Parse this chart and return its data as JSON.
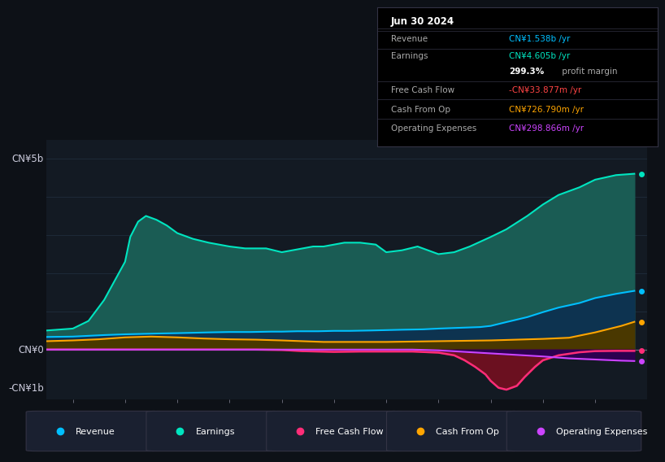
{
  "background_color": "#0d1117",
  "plot_bg_color": "#131a23",
  "title": "Jun 30 2024",
  "ylabel_top": "CN¥5b",
  "ylabel_bottom": "-CN¥1b",
  "ylabel_zero": "CN¥0",
  "ylim": [
    -1.3,
    5.5
  ],
  "xlim": [
    2013.5,
    2025.0
  ],
  "xticks": [
    2014,
    2015,
    2016,
    2017,
    2018,
    2019,
    2020,
    2021,
    2022,
    2023,
    2024
  ],
  "colors": {
    "revenue": "#00bfff",
    "earnings": "#00e5c0",
    "earnings_fill": "#1a5c54",
    "free_cash_flow": "#ff2d78",
    "free_cash_flow_fill": "#6b1020",
    "cash_from_op": "#ffa500",
    "operating_expenses": "#cc44ff",
    "revenue_fill": "#0d3350",
    "zero_line": "#444455"
  },
  "info_box": {
    "title": "Jun 30 2024",
    "rows": [
      {
        "label": "Revenue",
        "value": "CN¥1.538b /yr",
        "value_color": "#00bfff"
      },
      {
        "label": "Earnings",
        "value": "CN¥4.605b /yr",
        "value_color": "#00e5c0"
      },
      {
        "label": "",
        "value2_bold": "299.3%",
        "value2_rest": " profit margin"
      },
      {
        "label": "Free Cash Flow",
        "value": "-CN¥33.877m /yr",
        "value_color": "#ff4444"
      },
      {
        "label": "Cash From Op",
        "value": "CN¥726.790m /yr",
        "value_color": "#ffa500"
      },
      {
        "label": "Operating Expenses",
        "value": "CN¥298.866m /yr",
        "value_color": "#cc44ff"
      }
    ]
  },
  "revenue_x": [
    2013.5,
    2014.0,
    2014.3,
    2014.6,
    2015.0,
    2015.3,
    2015.6,
    2016.0,
    2016.3,
    2016.6,
    2017.0,
    2017.4,
    2017.8,
    2018.0,
    2018.3,
    2018.7,
    2019.0,
    2019.3,
    2019.7,
    2020.0,
    2020.3,
    2020.7,
    2021.0,
    2021.4,
    2021.8,
    2022.0,
    2022.3,
    2022.7,
    2023.0,
    2023.3,
    2023.7,
    2024.0,
    2024.4,
    2024.75
  ],
  "revenue_y": [
    0.33,
    0.34,
    0.36,
    0.38,
    0.4,
    0.41,
    0.42,
    0.43,
    0.44,
    0.45,
    0.46,
    0.46,
    0.47,
    0.47,
    0.48,
    0.48,
    0.49,
    0.49,
    0.5,
    0.51,
    0.52,
    0.53,
    0.55,
    0.57,
    0.59,
    0.62,
    0.72,
    0.85,
    0.98,
    1.1,
    1.22,
    1.35,
    1.46,
    1.538
  ],
  "earnings_x": [
    2013.5,
    2014.0,
    2014.3,
    2014.6,
    2015.0,
    2015.1,
    2015.25,
    2015.4,
    2015.6,
    2015.8,
    2016.0,
    2016.3,
    2016.6,
    2017.0,
    2017.3,
    2017.7,
    2018.0,
    2018.2,
    2018.4,
    2018.6,
    2018.8,
    2019.0,
    2019.2,
    2019.5,
    2019.8,
    2020.0,
    2020.3,
    2020.6,
    2021.0,
    2021.3,
    2021.6,
    2022.0,
    2022.3,
    2022.7,
    2023.0,
    2023.3,
    2023.7,
    2024.0,
    2024.4,
    2024.75
  ],
  "earnings_y": [
    0.5,
    0.55,
    0.75,
    1.3,
    2.3,
    2.95,
    3.35,
    3.5,
    3.4,
    3.25,
    3.05,
    2.9,
    2.8,
    2.7,
    2.65,
    2.65,
    2.55,
    2.6,
    2.65,
    2.7,
    2.7,
    2.75,
    2.8,
    2.8,
    2.75,
    2.55,
    2.6,
    2.7,
    2.5,
    2.55,
    2.7,
    2.95,
    3.15,
    3.5,
    3.8,
    4.05,
    4.25,
    4.45,
    4.57,
    4.605
  ],
  "cash_from_op_x": [
    2013.5,
    2014.0,
    2014.5,
    2015.0,
    2015.5,
    2016.0,
    2016.5,
    2017.0,
    2017.5,
    2018.0,
    2018.4,
    2018.8,
    2019.0,
    2019.5,
    2020.0,
    2020.5,
    2021.0,
    2021.5,
    2022.0,
    2022.5,
    2023.0,
    2023.5,
    2024.0,
    2024.5,
    2024.75
  ],
  "cash_from_op_y": [
    0.22,
    0.24,
    0.27,
    0.32,
    0.34,
    0.32,
    0.29,
    0.27,
    0.26,
    0.24,
    0.22,
    0.2,
    0.2,
    0.2,
    0.2,
    0.21,
    0.22,
    0.23,
    0.24,
    0.26,
    0.28,
    0.31,
    0.45,
    0.62,
    0.727
  ],
  "free_cash_flow_x": [
    2013.5,
    2014.5,
    2015.5,
    2016.5,
    2017.5,
    2018.0,
    2018.4,
    2019.0,
    2019.5,
    2020.0,
    2020.5,
    2021.0,
    2021.3,
    2021.5,
    2021.7,
    2021.9,
    2022.0,
    2022.15,
    2022.3,
    2022.5,
    2022.65,
    2022.85,
    2023.0,
    2023.3,
    2023.7,
    2024.0,
    2024.4,
    2024.75
  ],
  "free_cash_flow_y": [
    0.0,
    0.0,
    0.0,
    0.0,
    0.0,
    -0.01,
    -0.04,
    -0.06,
    -0.05,
    -0.05,
    -0.05,
    -0.08,
    -0.15,
    -0.28,
    -0.45,
    -0.65,
    -0.82,
    -1.0,
    -1.05,
    -0.95,
    -0.72,
    -0.45,
    -0.28,
    -0.15,
    -0.07,
    -0.04,
    -0.034,
    -0.034
  ],
  "operating_expenses_x": [
    2013.5,
    2015.0,
    2016.0,
    2017.0,
    2018.0,
    2018.5,
    2019.0,
    2019.5,
    2020.0,
    2020.5,
    2021.0,
    2021.5,
    2022.0,
    2022.5,
    2023.0,
    2023.5,
    2024.0,
    2024.5,
    2024.75
  ],
  "operating_expenses_y": [
    0.0,
    0.0,
    0.0,
    0.0,
    0.0,
    0.0,
    0.0,
    0.0,
    0.0,
    0.0,
    -0.02,
    -0.06,
    -0.1,
    -0.14,
    -0.18,
    -0.23,
    -0.26,
    -0.29,
    -0.299
  ],
  "legend": [
    {
      "label": "Revenue",
      "color": "#00bfff"
    },
    {
      "label": "Earnings",
      "color": "#00e5c0"
    },
    {
      "label": "Free Cash Flow",
      "color": "#ff2d78"
    },
    {
      "label": "Cash From Op",
      "color": "#ffa500"
    },
    {
      "label": "Operating Expenses",
      "color": "#cc44ff"
    }
  ]
}
